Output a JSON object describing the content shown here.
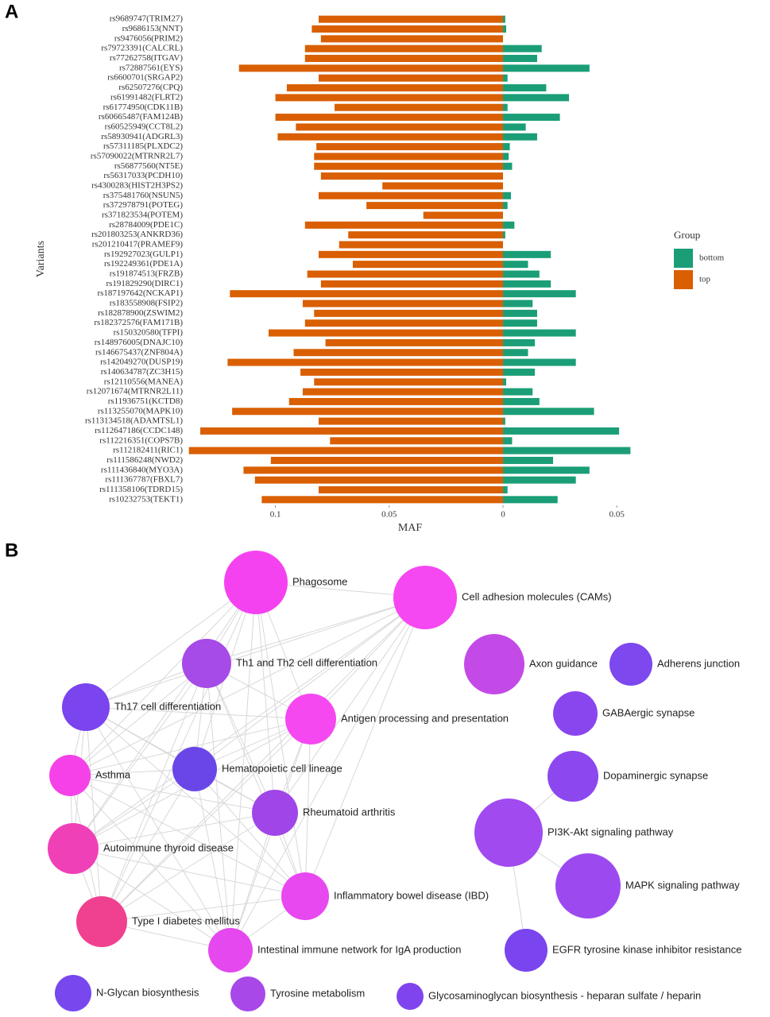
{
  "chart_data": {
    "type": "diverging_bar",
    "panel_label": "A",
    "x_label": "MAF",
    "y_label": "Variants",
    "legend_title": "Group",
    "categories": [
      "rs9689747(TRIM27)",
      "rs9686153(NNT)",
      "rs9476056(PRIM2)",
      "rs79723391(CALCRL)",
      "rs77262758(ITGAV)",
      "rs72887561(EYS)",
      "rs6600701(SRGAP2)",
      "rs62507276(CPQ)",
      "rs61991482(FLRT2)",
      "rs61774950(CDK11B)",
      "rs60665487(FAM124B)",
      "rs60525949(CCT8L2)",
      "rs58930941(ADGRL3)",
      "rs57311185(PLXDC2)",
      "rs57090022(MTRNR2L7)",
      "rs56877560(NT5E)",
      "rs56317033(PCDH10)",
      "rs4300283(HIST2H3PS2)",
      "rs375481760(NSUN5)",
      "rs372978791(POTEG)",
      "rs371823534(POTEM)",
      "rs28784009(PDE1C)",
      "rs201803253(ANKRD36)",
      "rs201210417(PRAMEF9)",
      "rs192927023(GULP1)",
      "rs192249361(PDE1A)",
      "rs191874513(FRZB)",
      "rs191829290(DIRC1)",
      "rs187197642(NCKAP1)",
      "rs183558908(FSIP2)",
      "rs182878900(ZSWIM2)",
      "rs182372576(FAM171B)",
      "rs150320580(TFPI)",
      "rs148976005(DNAJC10)",
      "rs146675437(ZNF804A)",
      "rs142049270(DUSP19)",
      "rs140634787(ZC3H15)",
      "rs12110556(MANEA)",
      "rs12071674(MTRNR2L11)",
      "rs11936751(KCTD8)",
      "rs113255070(MAPK10)",
      "rs113134518(ADAMTSL1)",
      "rs112647186(CCDC148)",
      "rs112216351(COPS7B)",
      "rs112182411(RIC1)",
      "rs111586248(NWD2)",
      "rs111436840(MYO3A)",
      "rs111367787(FBXL7)",
      "rs111358106(TDRD15)",
      "rs10232753(TEKT1)"
    ],
    "series": [
      {
        "name": "bottom",
        "color": "#1b9e77",
        "side": "right",
        "values": [
          0.001,
          0.0014,
          0,
          0.017,
          0.015,
          0.038,
          0.002,
          0.019,
          0.029,
          0.002,
          0.025,
          0.01,
          0.015,
          0.003,
          0.0025,
          0.004,
          0,
          0,
          0.0035,
          0.002,
          0,
          0.005,
          0.001,
          0,
          0.021,
          0.011,
          0.016,
          0.021,
          0.032,
          0.013,
          0.015,
          0.015,
          0.032,
          0.014,
          0.011,
          0.032,
          0.014,
          0.0014,
          0.013,
          0.016,
          0.04,
          0.001,
          0.051,
          0.004,
          0.056,
          0.022,
          0.038,
          0.032,
          0.002,
          0.024
        ]
      },
      {
        "name": "top",
        "color": "#d95f02",
        "side": "left",
        "values": [
          0.081,
          0.084,
          0.08,
          0.087,
          0.087,
          0.116,
          0.081,
          0.095,
          0.1,
          0.074,
          0.1,
          0.091,
          0.099,
          0.082,
          0.083,
          0.083,
          0.08,
          0.053,
          0.081,
          0.06,
          0.035,
          0.087,
          0.068,
          0.072,
          0.081,
          0.066,
          0.086,
          0.08,
          0.12,
          0.088,
          0.083,
          0.087,
          0.103,
          0.078,
          0.092,
          0.121,
          0.089,
          0.083,
          0.088,
          0.094,
          0.119,
          0.081,
          0.133,
          0.076,
          0.138,
          0.102,
          0.114,
          0.109,
          0.081,
          0.106
        ]
      }
    ],
    "xlim_left": [
      0,
      0.14
    ],
    "xlim_right": [
      0,
      0.058
    ],
    "xticks_left": [
      0.1,
      0.05,
      0
    ],
    "xticks_right": [
      0.05
    ]
  },
  "network": {
    "panel_label": "B",
    "nodes": [
      {
        "label": "Phagosome",
        "color": "#f542f0"
      },
      {
        "label": "Cell adhesion molecules (CAMs)",
        "color": "#f547f2"
      },
      {
        "label": "Th1 and Th2 cell differentiation",
        "color": "#a64ae8"
      },
      {
        "label": "Axon guidance",
        "color": "#c44ae8"
      },
      {
        "label": "Adherens junction",
        "color": "#7d48ee"
      },
      {
        "label": "Th17 cell differentiation",
        "color": "#7a44ee"
      },
      {
        "label": "Antigen processing and presentation",
        "color": "#f548f0"
      },
      {
        "label": "GABAergic synapse",
        "color": "#8a46ee"
      },
      {
        "label": "Asthma",
        "color": "#f542e8"
      },
      {
        "label": "Hematopoietic cell lineage",
        "color": "#6a46e8"
      },
      {
        "label": "Dopaminergic synapse",
        "color": "#8c48ee"
      },
      {
        "label": "Rheumatoid arthritis",
        "color": "#a046e8"
      },
      {
        "label": "PI3K-Akt signaling pathway",
        "color": "#a04af0"
      },
      {
        "label": "Autoimmune thyroid disease",
        "color": "#f040b8"
      },
      {
        "label": "MAPK signaling pathway",
        "color": "#9c4af0"
      },
      {
        "label": "Inflammatory bowel disease (IBD)",
        "color": "#e848f0"
      },
      {
        "label": "Type I diabetes mellitus",
        "color": "#f04090"
      },
      {
        "label": "Intestinal immune network for IgA production",
        "color": "#e448ee"
      },
      {
        "label": "EGFR tyrosine kinase inhibitor resistance",
        "color": "#7a44ee"
      },
      {
        "label": "N-Glycan biosynthesis",
        "color": "#7848ee"
      },
      {
        "label": "Tyrosine metabolism",
        "color": "#a848e8"
      },
      {
        "label": "Glycosaminoglycan biosynthesis - heparan sulfate / heparin",
        "color": "#8044ee"
      }
    ]
  }
}
